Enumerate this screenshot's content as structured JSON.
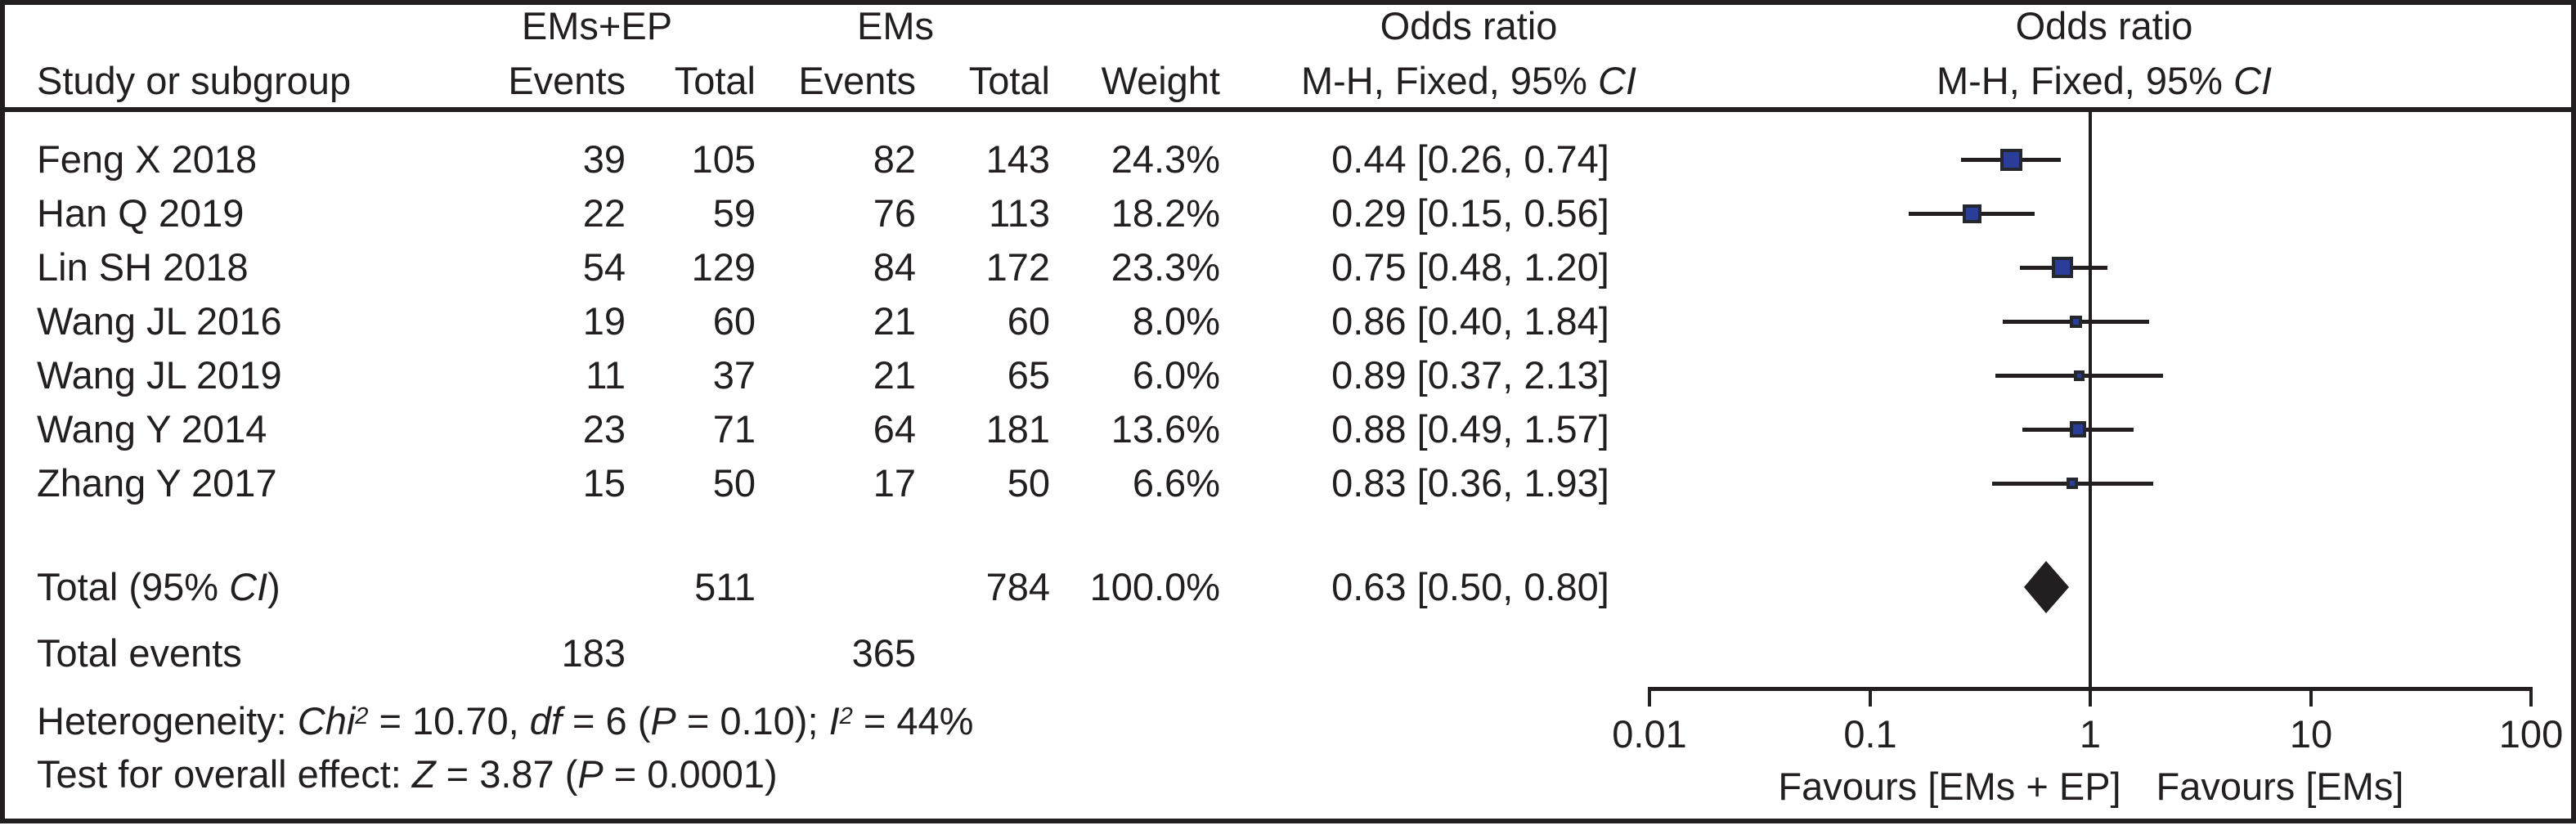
{
  "header": {
    "group1": "EMs+EP",
    "group2": "EMs",
    "study_col": "Study or subgroup",
    "events_col": "Events",
    "total_col": "Total",
    "weight_col": "Weight",
    "or_title": "Odds ratio",
    "plot_title": "Odds ratio",
    "mh_subtitle": [
      {
        "t": "M-H, Fixed, 95% "
      },
      {
        "t": "CI",
        "i": true
      }
    ]
  },
  "studies": [
    {
      "name": "Feng X 2018",
      "events1": "39",
      "total1": "105",
      "events2": "82",
      "total2": "143",
      "weight": "24.3%",
      "weight_value": 24.3,
      "or_label": "0.44 [0.26, 0.74]",
      "or": 0.44,
      "ci_low": 0.26,
      "ci_high": 0.74
    },
    {
      "name": "Han Q 2019",
      "events1": "22",
      "total1": "59",
      "events2": "76",
      "total2": "113",
      "weight": "18.2%",
      "weight_value": 18.2,
      "or_label": "0.29 [0.15, 0.56]",
      "or": 0.29,
      "ci_low": 0.15,
      "ci_high": 0.56
    },
    {
      "name": "Lin SH 2018",
      "events1": "54",
      "total1": "129",
      "events2": "84",
      "total2": "172",
      "weight": "23.3%",
      "weight_value": 23.3,
      "or_label": "0.75 [0.48, 1.20]",
      "or": 0.75,
      "ci_low": 0.48,
      "ci_high": 1.2
    },
    {
      "name": "Wang JL 2016",
      "events1": "19",
      "total1": "60",
      "events2": "21",
      "total2": "60",
      "weight": "8.0%",
      "weight_value": 8.0,
      "or_label": "0.86 [0.40, 1.84]",
      "or": 0.86,
      "ci_low": 0.4,
      "ci_high": 1.84
    },
    {
      "name": "Wang JL 2019",
      "events1": "11",
      "total1": "37",
      "events2": "21",
      "total2": "65",
      "weight": "6.0%",
      "weight_value": 6.0,
      "or_label": "0.89 [0.37, 2.13]",
      "or": 0.89,
      "ci_low": 0.37,
      "ci_high": 2.13
    },
    {
      "name": "Wang Y 2014",
      "events1": "23",
      "total1": "71",
      "events2": "64",
      "total2": "181",
      "weight": "13.6%",
      "weight_value": 13.6,
      "or_label": "0.88 [0.49, 1.57]",
      "or": 0.88,
      "ci_low": 0.49,
      "ci_high": 1.57
    },
    {
      "name": "Zhang Y 2017",
      "events1": "15",
      "total1": "50",
      "events2": "17",
      "total2": "50",
      "weight": "6.6%",
      "weight_value": 6.6,
      "or_label": "0.83 [0.36, 1.93]",
      "or": 0.83,
      "ci_low": 0.36,
      "ci_high": 1.93
    }
  ],
  "total": {
    "label_segments": [
      {
        "t": "Total (95% "
      },
      {
        "t": "CI",
        "i": true
      },
      {
        "t": ")"
      }
    ],
    "total1": "511",
    "total2": "784",
    "weight": "100.0%",
    "or_label": "0.63 [0.50, 0.80]",
    "or": 0.63,
    "ci_low": 0.5,
    "ci_high": 0.8
  },
  "total_events": {
    "label": "Total events",
    "events1": "183",
    "events2": "365"
  },
  "footer": {
    "heterogeneity_segments": [
      {
        "t": "Heterogeneity: "
      },
      {
        "t": "Chi",
        "i": true
      },
      {
        "t": "2",
        "i": true,
        "sup": true
      },
      {
        "t": " = 10.70, "
      },
      {
        "t": "df",
        "i": true
      },
      {
        "t": " = 6 ("
      },
      {
        "t": "P",
        "i": true
      },
      {
        "t": " = 0.10); "
      },
      {
        "t": "I",
        "i": true
      },
      {
        "t": "2",
        "i": true,
        "sup": true
      },
      {
        "t": " = 44%"
      }
    ],
    "overall_effect_segments": [
      {
        "t": "Test for overall effect: "
      },
      {
        "t": "Z",
        "i": true
      },
      {
        "t": " = 3.87 ("
      },
      {
        "t": "P",
        "i": true
      },
      {
        "t": " = 0.0001)"
      }
    ]
  },
  "axis": {
    "ticks": [
      {
        "label": "0.01",
        "value": 0.01
      },
      {
        "label": "0.1",
        "value": 0.1
      },
      {
        "label": "1",
        "value": 1
      },
      {
        "label": "10",
        "value": 10
      },
      {
        "label": "100",
        "value": 100
      }
    ],
    "favours_left": "Favours [EMs + EP]",
    "favours_right": "Favours [EMs]"
  },
  "colors": {
    "ink": "#231f20",
    "marker_fill": "#2a3e99",
    "marker_border": "#25272e"
  },
  "chart_data": {
    "type": "scatter",
    "variant": "forest-plot",
    "title": "Odds ratio",
    "effect_measure": "M-H, Fixed, 95% CI",
    "xscale": "log",
    "xlim": [
      0.01,
      100
    ],
    "x_ticks": [
      0.01,
      0.1,
      1,
      10,
      100
    ],
    "reference_line": 1,
    "xlabel_left": "Favours [EMs + EP]",
    "xlabel_right": "Favours [EMs]",
    "groups": [
      "EMs+EP",
      "EMs"
    ],
    "studies": [
      {
        "name": "Feng X 2018",
        "events_emsep": 39,
        "total_emsep": 105,
        "events_ems": 82,
        "total_ems": 143,
        "weight_pct": 24.3,
        "or": 0.44,
        "ci": [
          0.26,
          0.74
        ]
      },
      {
        "name": "Han Q 2019",
        "events_emsep": 22,
        "total_emsep": 59,
        "events_ems": 76,
        "total_ems": 113,
        "weight_pct": 18.2,
        "or": 0.29,
        "ci": [
          0.15,
          0.56
        ]
      },
      {
        "name": "Lin SH 2018",
        "events_emsep": 54,
        "total_emsep": 129,
        "events_ems": 84,
        "total_ems": 172,
        "weight_pct": 23.3,
        "or": 0.75,
        "ci": [
          0.48,
          1.2
        ]
      },
      {
        "name": "Wang JL 2016",
        "events_emsep": 19,
        "total_emsep": 60,
        "events_ems": 21,
        "total_ems": 60,
        "weight_pct": 8.0,
        "or": 0.86,
        "ci": [
          0.4,
          1.84
        ]
      },
      {
        "name": "Wang JL 2019",
        "events_emsep": 11,
        "total_emsep": 37,
        "events_ems": 21,
        "total_ems": 65,
        "weight_pct": 6.0,
        "or": 0.89,
        "ci": [
          0.37,
          2.13
        ]
      },
      {
        "name": "Wang Y 2014",
        "events_emsep": 23,
        "total_emsep": 71,
        "events_ems": 64,
        "total_ems": 181,
        "weight_pct": 13.6,
        "or": 0.88,
        "ci": [
          0.49,
          1.57
        ]
      },
      {
        "name": "Zhang Y 2017",
        "events_emsep": 15,
        "total_emsep": 50,
        "events_ems": 17,
        "total_ems": 50,
        "weight_pct": 6.6,
        "or": 0.83,
        "ci": [
          0.36,
          1.93
        ]
      }
    ],
    "total": {
      "total_emsep": 511,
      "total_ems": 784,
      "events_emsep": 183,
      "events_ems": 365,
      "weight_pct": 100.0,
      "or": 0.63,
      "ci": [
        0.5,
        0.8
      ]
    },
    "heterogeneity": {
      "chi2": 10.7,
      "df": 6,
      "p": 0.1,
      "i2_pct": 44
    },
    "overall_effect": {
      "z": 3.87,
      "p": 0.0001
    }
  }
}
